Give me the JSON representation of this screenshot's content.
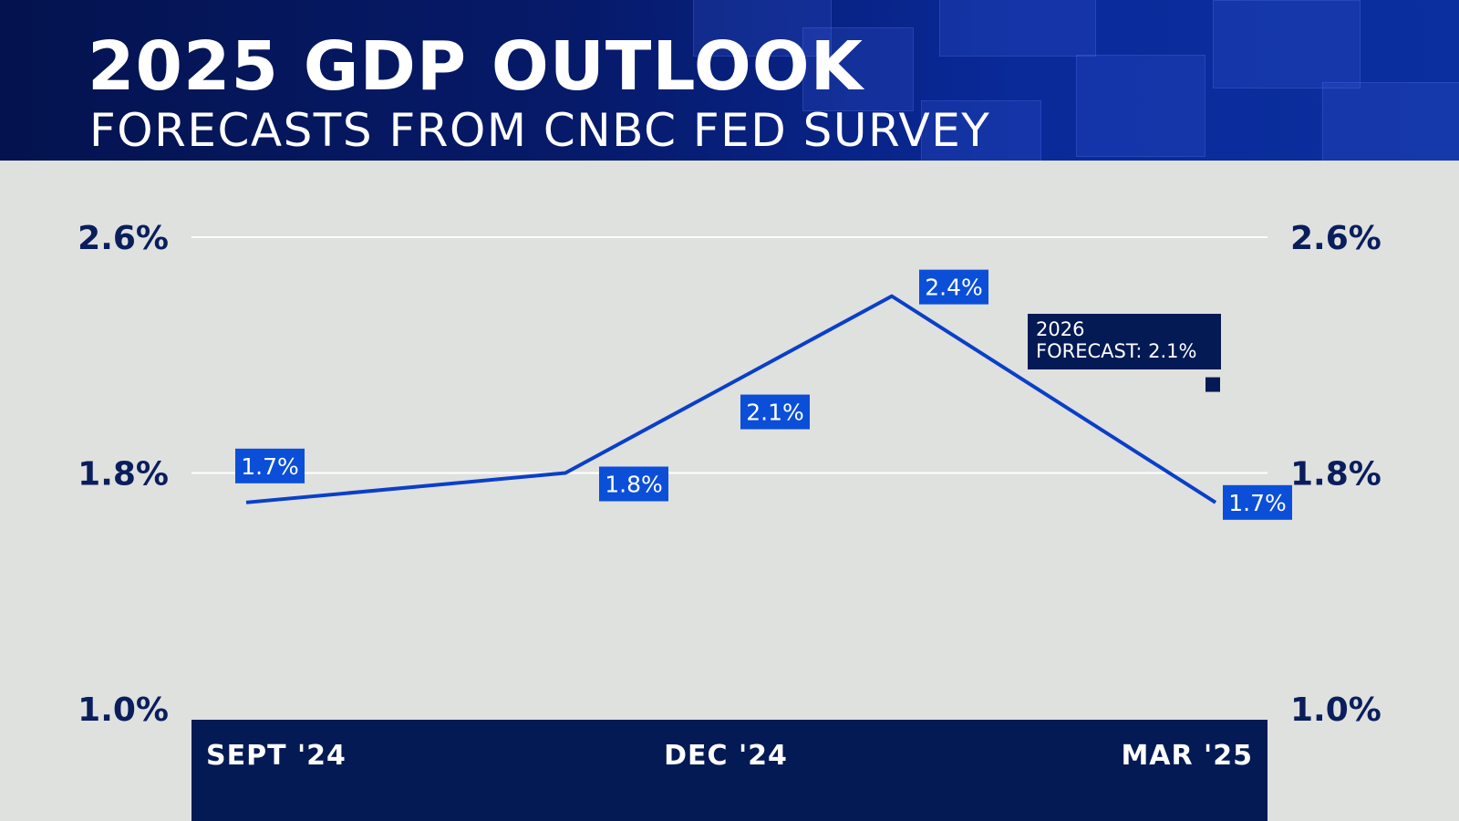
{
  "header": {
    "title": "2025 GDP OUTLOOK",
    "subtitle": "FORECASTS FROM CNBC FED SURVEY"
  },
  "colors": {
    "header_bg": "#061a6a",
    "plot_bg": "#dfe1df",
    "line": "#0b3fc8",
    "label_bg": "#0b4fd8",
    "axis_band": "#041a55",
    "tick_text": "#0a1e5c",
    "note_bg": "#041a55"
  },
  "chart_data": {
    "type": "line",
    "title": "2025 GDP OUTLOOK",
    "subtitle": "FORECASTS FROM CNBC FED SURVEY",
    "x_tick_labels": [
      "SEPT '24",
      "DEC '24",
      "MAR '25"
    ],
    "y_tick_labels": [
      "2.6%",
      "1.8%",
      "1.0%"
    ],
    "y_ticks": [
      2.6,
      1.8,
      1.0
    ],
    "ylim": [
      1.0,
      2.6
    ],
    "grid": true,
    "series": [
      {
        "values": [
          1.7,
          1.8,
          2.1,
          2.4,
          1.7
        ],
        "labels": [
          "1.7%",
          "1.8%",
          "2.1%",
          "2.4%",
          "1.7%"
        ]
      }
    ],
    "annotation": {
      "lines": [
        "2026",
        "FORECAST: 2.1%"
      ],
      "value": 2.1
    }
  }
}
